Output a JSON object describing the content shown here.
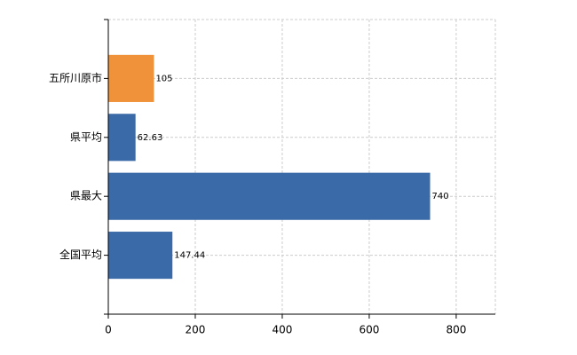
{
  "chart_data": {
    "type": "bar",
    "orientation": "horizontal",
    "categories": [
      "五所川原市",
      "県平均",
      "県最大",
      "全国平均"
    ],
    "values": [
      105,
      62.63,
      740,
      147.44
    ],
    "colors": [
      "#f0923a",
      "#3b6aa8",
      "#3b6aa8",
      "#3b6aa8"
    ],
    "xlim": [
      0,
      890
    ],
    "xticks": [
      0,
      200,
      400,
      600,
      800
    ],
    "grid": true
  }
}
